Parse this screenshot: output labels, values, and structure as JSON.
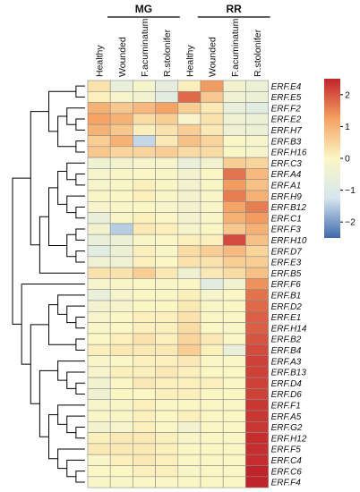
{
  "chart_data": {
    "type": "heatmap",
    "title": "",
    "group_labels": [
      "MG",
      "RR"
    ],
    "columns": [
      "Healthy",
      "Wounded",
      "F.acuminatum",
      "R.stolonifer",
      "Healthy",
      "Wounded",
      "F.acuminatum",
      "R.stolonifer"
    ],
    "column_groups": [
      "MG",
      "MG",
      "MG",
      "MG",
      "RR",
      "RR",
      "RR",
      "RR"
    ],
    "rows": [
      "ERF.E4",
      "ERF.E5",
      "ERF.F2",
      "ERF.E2",
      "ERF.H7",
      "ERF.B3",
      "ERF.H16",
      "ERF.C3",
      "ERF.A4",
      "ERF.A1",
      "ERF.H9",
      "ERF.B12",
      "ERF.C1",
      "ERF.F3",
      "ERF.H10",
      "ERF.D7",
      "ERF.E3",
      "ERF.B5",
      "ERF.F6",
      "ERF.B1",
      "ERF.D2",
      "ERF.E1",
      "ERF.H14",
      "ERF.B2",
      "ERF.B4",
      "ERF.A3",
      "ERF.B13",
      "ERF.D4",
      "ERF.D6",
      "ERF.F1",
      "ERF.A5",
      "ERF.G2",
      "ERF.H12",
      "ERF.F5",
      "ERF.C4",
      "ERF.C6",
      "ERF.F4"
    ],
    "values": [
      [
        0.3,
        -0.6,
        -0.2,
        -0.7,
        0.1,
        1.3,
        -0.3,
        -0.5
      ],
      [
        0.1,
        -0.2,
        -0.3,
        -0.8,
        1.8,
        0.7,
        -0.4,
        -0.5
      ],
      [
        1.0,
        0.7,
        0.9,
        1.2,
        0.6,
        0.2,
        -0.6,
        -0.8
      ],
      [
        1.2,
        1.0,
        0.4,
        0.6,
        -0.2,
        0.3,
        -0.4,
        -0.5
      ],
      [
        1.0,
        0.7,
        0.1,
        0.3,
        0.6,
        0.2,
        -0.4,
        -0.5
      ],
      [
        0.6,
        1.0,
        -1.4,
        0.2,
        0.8,
        0.5,
        0.0,
        -0.2
      ],
      [
        0.7,
        0.5,
        0.5,
        0.6,
        0.4,
        0.4,
        -0.1,
        -0.2
      ],
      [
        -0.4,
        -0.3,
        -0.2,
        -0.2,
        -0.6,
        -0.3,
        0.6,
        0.5
      ],
      [
        -0.2,
        -0.1,
        0.0,
        -0.1,
        -0.3,
        0.0,
        1.7,
        0.9
      ],
      [
        -0.2,
        -0.1,
        0.1,
        -0.1,
        -0.3,
        -0.1,
        1.3,
        0.8
      ],
      [
        -0.1,
        0.0,
        0.1,
        -0.1,
        -0.3,
        -0.1,
        1.6,
        1.0
      ],
      [
        -0.2,
        -0.1,
        0.0,
        -0.2,
        -0.3,
        -0.1,
        1.2,
        1.6
      ],
      [
        -0.6,
        -0.1,
        0.1,
        0.0,
        -0.3,
        -0.1,
        1.0,
        1.3
      ],
      [
        -0.3,
        -1.5,
        0.2,
        0.1,
        -0.2,
        0.0,
        0.7,
        1.0
      ],
      [
        -0.6,
        -0.5,
        -0.1,
        0.0,
        0.1,
        0.1,
        2.1,
        0.8
      ],
      [
        -0.8,
        -0.5,
        0.1,
        -0.1,
        0.4,
        0.6,
        0.9,
        0.5
      ],
      [
        -0.4,
        -0.4,
        0.1,
        0.0,
        0.3,
        0.3,
        0.6,
        0.6
      ],
      [
        0.3,
        0.3,
        0.6,
        0.2,
        -0.4,
        0.2,
        0.4,
        0.8
      ],
      [
        -0.2,
        -0.1,
        0.0,
        -0.1,
        0.0,
        -0.8,
        -0.3,
        1.4
      ],
      [
        -0.6,
        -0.2,
        0.0,
        -0.1,
        0.1,
        -0.2,
        0.0,
        1.7
      ],
      [
        -0.3,
        -0.2,
        0.0,
        0.0,
        0.2,
        -0.1,
        0.0,
        1.8
      ],
      [
        -0.2,
        0.0,
        0.1,
        0.1,
        0.3,
        0.0,
        0.0,
        1.9
      ],
      [
        -0.1,
        0.0,
        0.1,
        0.1,
        0.4,
        0.0,
        -0.1,
        1.9
      ],
      [
        0.0,
        0.1,
        0.3,
        0.1,
        0.5,
        0.2,
        0.0,
        2.0
      ],
      [
        0.1,
        0.2,
        0.2,
        0.2,
        0.6,
        0.1,
        -0.6,
        2.1
      ],
      [
        -0.1,
        0.0,
        0.1,
        0.1,
        0.2,
        0.0,
        0.0,
        2.2
      ],
      [
        -0.2,
        0.1,
        0.1,
        0.2,
        0.1,
        0.0,
        0.0,
        2.2
      ],
      [
        -0.3,
        0.0,
        0.2,
        0.1,
        0.1,
        0.1,
        0.0,
        2.2
      ],
      [
        -0.4,
        0.0,
        0.0,
        0.1,
        0.1,
        0.0,
        0.0,
        2.2
      ],
      [
        -0.2,
        -0.1,
        0.1,
        0.0,
        0.0,
        0.0,
        0.0,
        2.3
      ],
      [
        -0.1,
        -0.1,
        0.1,
        0.0,
        0.1,
        0.0,
        0.0,
        2.3
      ],
      [
        -0.3,
        -0.2,
        0.1,
        0.0,
        -0.3,
        0.0,
        0.0,
        2.3
      ],
      [
        0.1,
        0.2,
        0.2,
        0.1,
        -0.1,
        0.0,
        0.0,
        2.4
      ],
      [
        0.2,
        0.2,
        0.2,
        0.1,
        0.0,
        0.0,
        0.0,
        2.4
      ],
      [
        -0.1,
        0.1,
        0.2,
        0.1,
        0.0,
        0.0,
        0.0,
        2.4
      ],
      [
        0.0,
        0.0,
        0.1,
        0.1,
        -0.1,
        0.0,
        0.0,
        2.5
      ],
      [
        -0.1,
        -0.1,
        0.0,
        0.0,
        0.0,
        0.0,
        0.0,
        2.5
      ]
    ],
    "color_scale": {
      "min": -2.5,
      "max": 2.5,
      "ticks": [
        2,
        1,
        0,
        -1,
        -2
      ],
      "colors": [
        "#3f68ac",
        "#d5e6ef",
        "#fbf7c4",
        "#f5a161",
        "#c1232a"
      ]
    },
    "dendrogram": "row",
    "grid": true,
    "legend": "top-right"
  }
}
